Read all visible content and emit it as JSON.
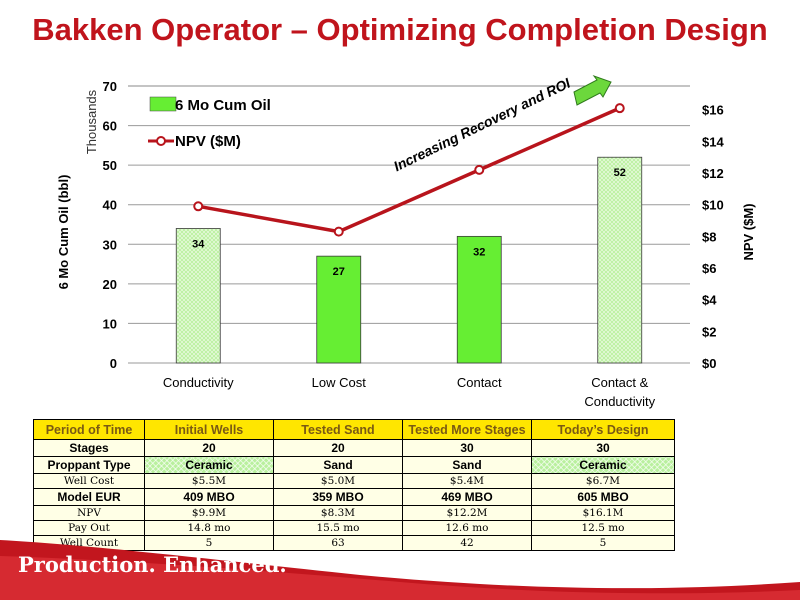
{
  "title": "Bakken Operator – Optimizing Completion Design",
  "slogan": "Production. Enhanced.",
  "colors": {
    "title": "#c0141c",
    "bar": "#66ee33",
    "bar_hatched": "#b9f09e",
    "line": "#b8141c",
    "header": "#ffe600",
    "footer": "#d21f26"
  },
  "chart_data": {
    "type": "bar",
    "categories": [
      "Conductivity",
      "Low Cost",
      "Contact",
      "Contact & Conductivity"
    ],
    "series": [
      {
        "name": "6 Mo Cum Oil",
        "type": "bar",
        "axis": "left",
        "values": [
          34,
          27,
          32,
          52
        ],
        "data_labels": [
          "34",
          "27",
          "32",
          "52"
        ],
        "hatched": [
          true,
          false,
          false,
          true
        ]
      },
      {
        "name": "NPV ($M)",
        "type": "line",
        "axis": "right",
        "values": [
          9.9,
          8.3,
          12.2,
          16.1
        ]
      }
    ],
    "ylabel": "6 Mo Cum Oil  (bbl)",
    "ylabel_units": "Thousands",
    "y2label": "NPV ($M)",
    "ylim": [
      0,
      70
    ],
    "y_ticks": [
      "0",
      "10",
      "20",
      "30",
      "40",
      "50",
      "60",
      "70"
    ],
    "y2lim": [
      0,
      17.5
    ],
    "y2_ticks": [
      "$0",
      "$2",
      "$4",
      "$6",
      "$8",
      "$10",
      "$12",
      "$14",
      "$16"
    ],
    "annotation": "Increasing Recovery and ROI",
    "legend_position": "top-left",
    "grid": "horizontal"
  },
  "table": {
    "header": [
      "Period of Time",
      "Initial Wells",
      "Tested Sand",
      "Tested More Stages",
      "Today’s Design"
    ],
    "rows": [
      {
        "label": "Stages",
        "values": [
          "20",
          "20",
          "30",
          "30"
        ]
      },
      {
        "label": "Proppant Type",
        "values": [
          "Ceramic",
          "Sand",
          "Sand",
          "Ceramic"
        ]
      },
      {
        "label": "Well Cost",
        "values": [
          "$5.5M",
          "$5.0M",
          "$5.4M",
          "$6.7M"
        ]
      },
      {
        "label": "Model EUR",
        "values": [
          "409 MBO",
          "359 MBO",
          "469 MBO",
          "605 MBO"
        ]
      },
      {
        "label": "NPV",
        "values": [
          "$9.9M",
          "$8.3M",
          "$12.2M",
          "$16.1M"
        ]
      },
      {
        "label": "Pay Out",
        "values": [
          "14.8 mo",
          "15.5 mo",
          "12.6 mo",
          "12.5 mo"
        ]
      },
      {
        "label": "Well Count",
        "values": [
          "5",
          "63",
          "42",
          "5"
        ]
      }
    ]
  }
}
